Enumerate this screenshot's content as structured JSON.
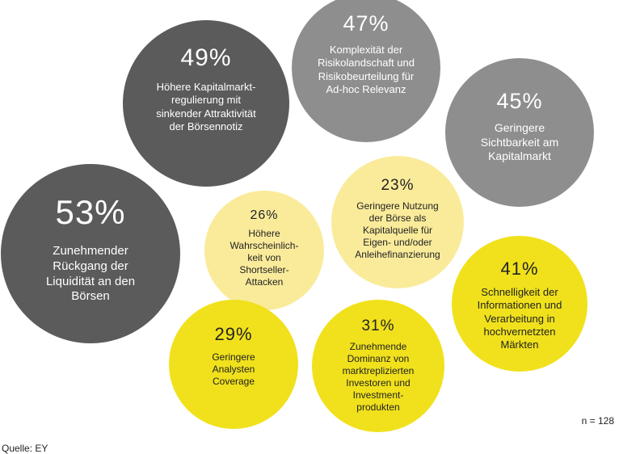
{
  "chart_data": {
    "type": "bubble",
    "title": "",
    "note": "n = 128",
    "source": "Quelle: EY",
    "colors": {
      "dark": "#5b5b5b",
      "medium": "#8e8e8e",
      "light_yellow": "#faeb9b",
      "yellow": "#f0e11c"
    },
    "items": [
      {
        "value": 49,
        "pct": "49%",
        "label": "Höhere Kapitalmarkt-\nregulierung mit\nsinkender Attraktivität\nder Börsennotiz"
      },
      {
        "value": 47,
        "pct": "47%",
        "label": "Komplexität der\nRisikolandschaft und\nRisikobeurteilung für\nAd-hoc Relevanz"
      },
      {
        "value": 45,
        "pct": "45%",
        "label": "Geringere\nSichtbarkeit am\nKapitalmarkt"
      },
      {
        "value": 53,
        "pct": "53%",
        "label": "Zunehmender\nRückgang der\nLiquidität an den\nBörsen"
      },
      {
        "value": 26,
        "pct": "26%",
        "label": "Höhere\nWahrscheinlich-\nkeit von\nShortseller-\nAttacken"
      },
      {
        "value": 23,
        "pct": "23%",
        "label": "Geringere Nutzung\nder Börse als\nKapitalquelle für\nEigen- und/oder\nAnleihefinanzierung"
      },
      {
        "value": 41,
        "pct": "41%",
        "label": "Schnelligkeit der\nInformationen  und\nVerarbeitung in\nhochvernetzten\nMärkten"
      },
      {
        "value": 29,
        "pct": "29%",
        "label": "Geringere\nAnalysten\nCoverage"
      },
      {
        "value": 31,
        "pct": "31%",
        "label": "Zunehmende\nDominanz von\nmarktreplizierten\nInvestoren und\nInvestment-\nprodukten"
      }
    ]
  }
}
